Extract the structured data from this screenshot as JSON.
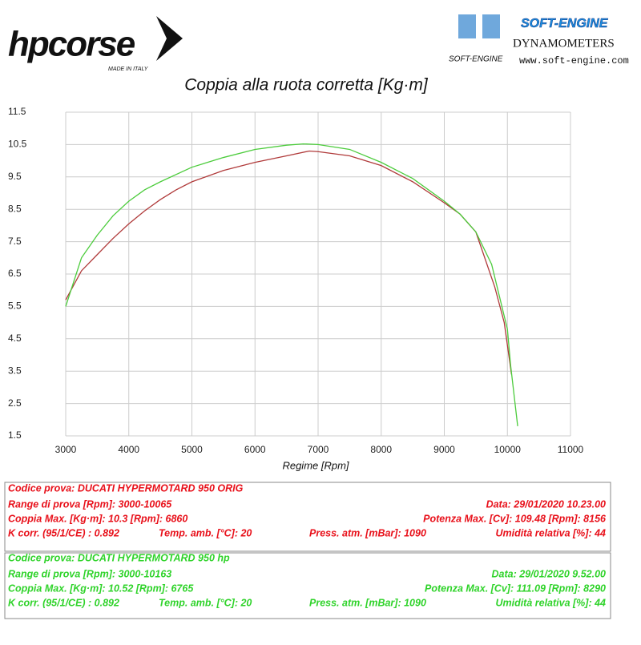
{
  "header": {
    "logo": "hpcorse",
    "logo_sub": "MADE IN ITALY",
    "brand": "SOFT-ENGINE",
    "brand_logo": "SOFT-ENGINE",
    "brand_sub": "DYNAMOMETERS",
    "url": "www.soft-engine.com"
  },
  "chart_data": {
    "type": "line",
    "title": "Coppia alla ruota corretta [Kg·m]",
    "x_label": "Regime [Rpm]",
    "xlim": [
      3000,
      11000
    ],
    "xticks": [
      3000,
      4000,
      5000,
      6000,
      7000,
      8000,
      9000,
      10000,
      11000
    ],
    "ylim": [
      1.5,
      11.5
    ],
    "yticks": [
      1.5,
      2.5,
      3.5,
      4.5,
      5.5,
      6.5,
      7.5,
      8.5,
      9.5,
      10.5,
      11.5
    ],
    "grid": true,
    "series": [
      {
        "color": "#b03a3a",
        "x": [
          3000,
          3250,
          3500,
          3750,
          4000,
          4250,
          4500,
          4750,
          5000,
          5500,
          6000,
          6500,
          6860,
          7000,
          7500,
          8000,
          8500,
          9000,
          9250,
          9500,
          9800,
          9950,
          10065
        ],
        "values": [
          5.7,
          6.6,
          7.1,
          7.6,
          8.05,
          8.45,
          8.8,
          9.1,
          9.35,
          9.7,
          9.95,
          10.15,
          10.3,
          10.28,
          10.15,
          9.85,
          9.35,
          8.7,
          8.35,
          7.8,
          6.1,
          5.0,
          3.4
        ]
      },
      {
        "color": "#4ccc3c",
        "x": [
          3000,
          3250,
          3500,
          3750,
          4000,
          4250,
          4500,
          5000,
          5500,
          6000,
          6500,
          6765,
          7000,
          7500,
          8000,
          8500,
          9000,
          9250,
          9500,
          9750,
          10000,
          10050,
          10163
        ],
        "values": [
          5.5,
          7.0,
          7.7,
          8.3,
          8.75,
          9.1,
          9.35,
          9.8,
          10.1,
          10.35,
          10.48,
          10.52,
          10.5,
          10.35,
          9.95,
          9.45,
          8.75,
          8.35,
          7.8,
          6.8,
          4.8,
          3.7,
          1.8
        ]
      }
    ]
  },
  "tests": [
    {
      "color": "#e8101a",
      "code": "Codice prova: DUCATI HYPERMOTARD 950 ORIG",
      "range": "Range di prova [Rpm]: 3000-10065",
      "date": "Data: 29/01/2020  10.23.00",
      "torque": "Coppia Max. [Kg·m]: 10.3  [Rpm]: 6860",
      "power": "Potenza Max. [Cv]: 109.48  [Rpm]: 8156",
      "kcorr": "K corr. (95/1/CE) : 0.892",
      "temp": "Temp. amb. [°C]: 20",
      "pressure": "Press. atm. [mBar]: 1090",
      "humidity": "Umidità relativa [%]: 44"
    },
    {
      "color": "#2fd32a",
      "code": "Codice prova: DUCATI HYPERMOTARD 950 hp",
      "range": "Range di prova [Rpm]: 3000-10163",
      "date": "Data: 29/01/2020  9.52.00",
      "torque": "Coppia Max. [Kg·m]: 10.52  [Rpm]: 6765",
      "power": "Potenza Max. [Cv]: 111.09  [Rpm]: 8290",
      "kcorr": "K corr. (95/1/CE) : 0.892",
      "temp": "Temp. amb. [°C]: 20",
      "pressure": "Press. atm. [mBar]: 1090",
      "humidity": "Umidità relativa [%]: 44"
    }
  ]
}
